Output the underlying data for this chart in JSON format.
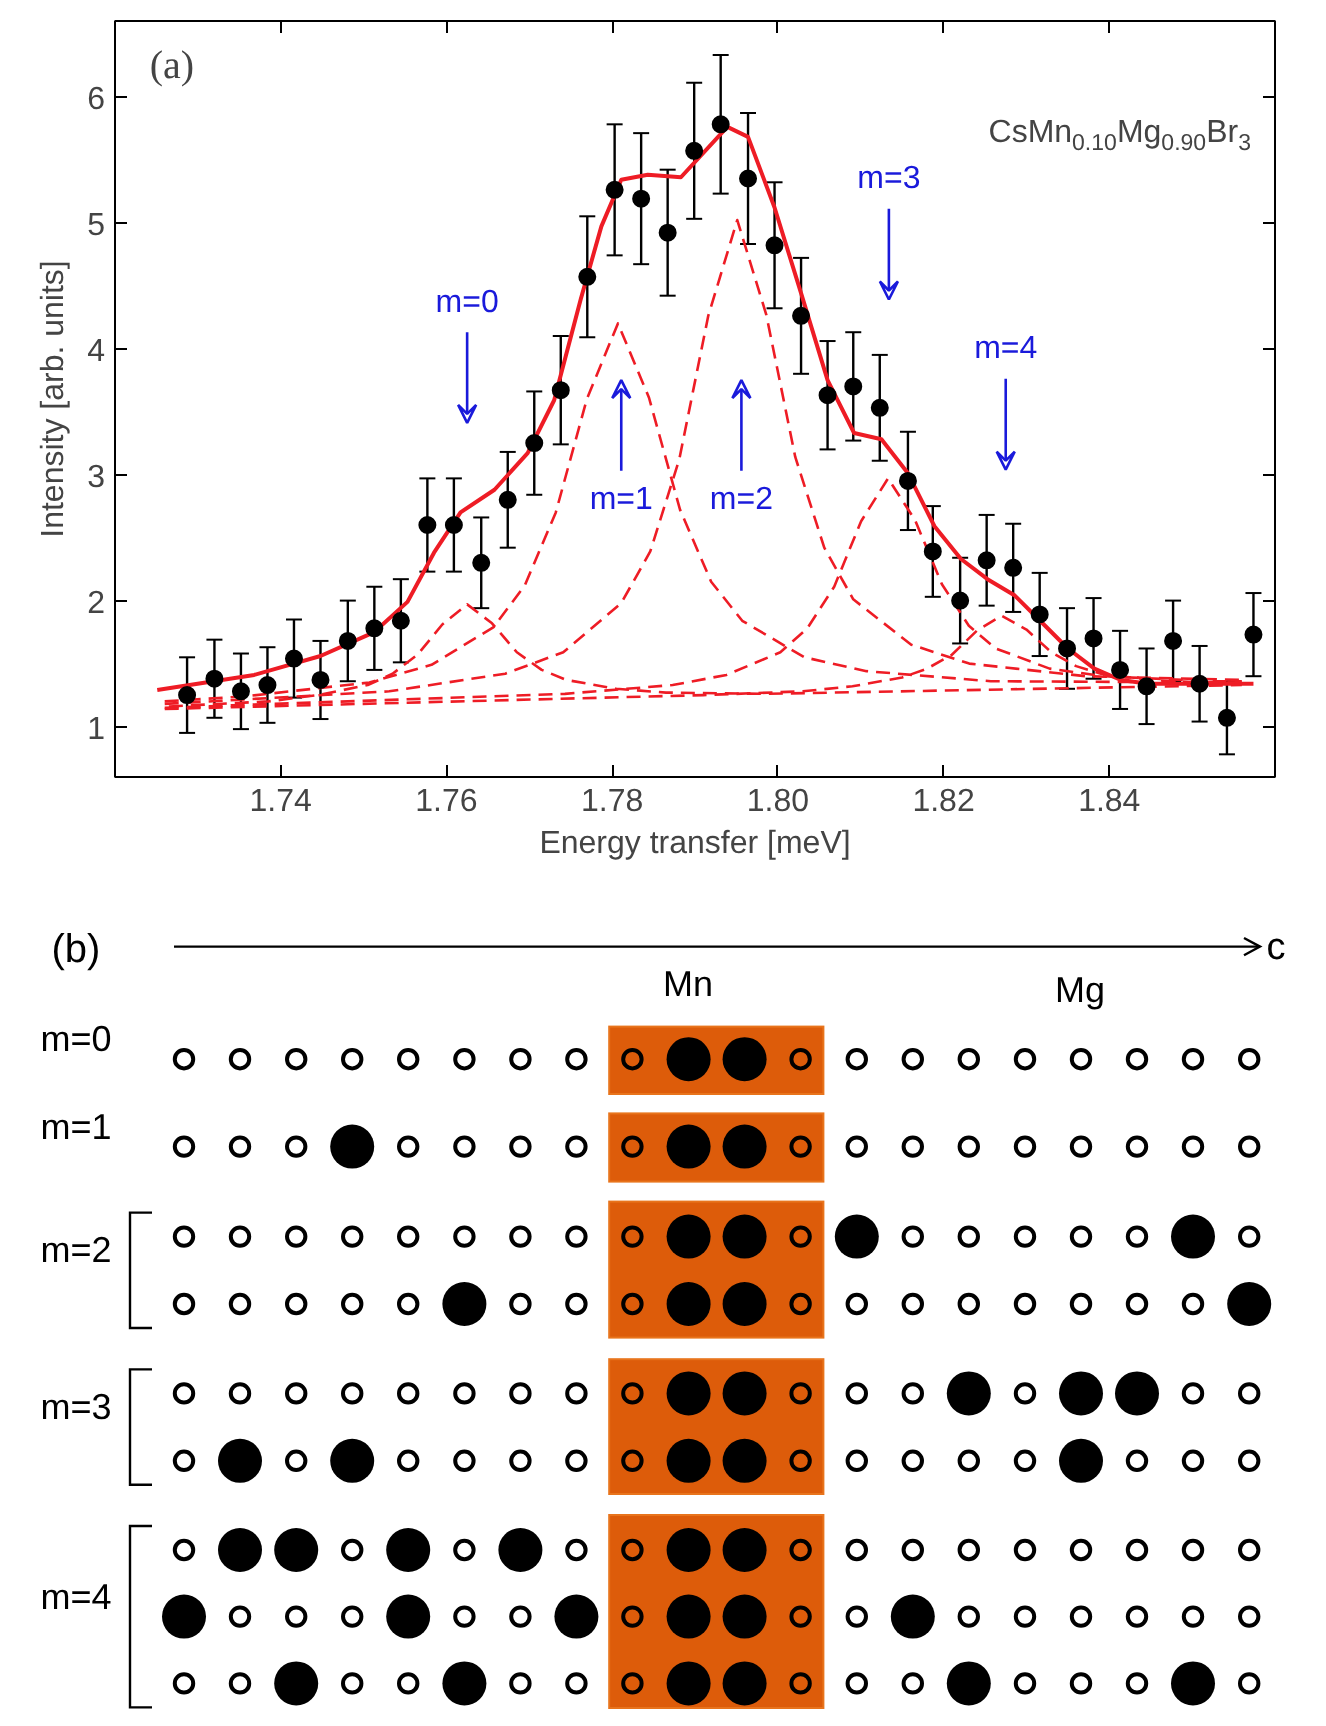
{
  "chart_data": [
    {
      "type": "scatter",
      "xlabel": "Energy transfer [meV]",
      "ylabel": "Intensity [arb. units]",
      "xlim": [
        1.72,
        1.86
      ],
      "ylim": [
        0.6,
        6.6
      ],
      "xticks": [
        1.74,
        1.76,
        1.78,
        {
          "value": 1.8,
          "label": "1.80"
        },
        1.82,
        1.84
      ],
      "yticks": [
        1,
        2,
        3,
        4,
        5,
        6
      ],
      "grid": false,
      "annotations": [
        "(a)",
        "CsMn$_{0.10}$Mg$_{0.90}$Br$_{3}$",
        "m=0",
        "m=1",
        "m=2",
        "m=3",
        "m=4"
      ],
      "series": [
        {
          "type": "line",
          "color": "#ee1c25",
          "line_style": "solid",
          "x": [
            1.7251,
            1.7368,
            1.7448,
            1.7513,
            1.7553,
            1.7585,
            1.7617,
            1.7658,
            1.7698,
            1.773,
            1.7762,
            1.7787,
            1.7811,
            1.7843,
            1.7883,
            1.7939,
            1.7964,
            1.7996,
            1.8028,
            1.806,
            1.8092,
            1.8125,
            1.8157,
            1.8189,
            1.8221,
            1.8253,
            1.8286,
            1.8318,
            1.835,
            1.8382,
            1.8414,
            1.8447,
            1.8574
          ],
          "values": [
            1.29,
            1.41,
            1.56,
            1.75,
            1.99,
            2.38,
            2.7,
            2.88,
            3.17,
            3.59,
            4.39,
            4.97,
            5.34,
            5.38,
            5.36,
            5.76,
            5.68,
            5.12,
            4.44,
            3.75,
            3.33,
            3.28,
            3.01,
            2.59,
            2.33,
            2.17,
            2.04,
            1.83,
            1.62,
            1.46,
            1.37,
            1.34,
            1.34
          ]
        },
        {
          "type": "line",
          "color": "#ee1c25",
          "line_style": "dashed",
          "x": [
            1.7265,
            1.7385,
            1.7445,
            1.7505,
            1.7535,
            1.7565,
            1.7595,
            1.7625,
            1.7655,
            1.7685,
            1.7715,
            1.7745,
            1.7805,
            1.7865,
            1.7985,
            1.856
          ],
          "values": [
            1.16,
            1.2,
            1.25,
            1.33,
            1.42,
            1.57,
            1.81,
            1.97,
            1.82,
            1.59,
            1.45,
            1.37,
            1.3,
            1.27,
            1.26,
            1.33
          ]
        },
        {
          "type": "line",
          "color": "#ee1c25",
          "line_style": "dashed",
          "x": [
            1.726,
            1.7357,
            1.7507,
            1.7582,
            1.7657,
            1.76945,
            1.7732,
            1.77695,
            1.7807,
            1.78445,
            1.7882,
            1.79195,
            1.7957,
            1.8032,
            1.8107,
            1.8257,
            1.856
          ],
          "values": [
            1.2,
            1.24,
            1.35,
            1.49,
            1.79,
            2.12,
            2.7,
            3.6,
            4.2,
            3.61,
            2.72,
            2.15,
            1.84,
            1.55,
            1.44,
            1.36,
            1.35
          ]
        },
        {
          "type": "line",
          "color": "#ee1c25",
          "line_style": "dashed",
          "x": [
            1.726,
            1.7531,
            1.7671,
            1.7741,
            1.7811,
            1.7846,
            1.7881,
            1.7916,
            1.7951,
            1.7986,
            1.8021,
            1.8056,
            1.8091,
            1.8161,
            1.8231,
            1.8371,
            1.856
          ],
          "values": [
            1.18,
            1.28,
            1.42,
            1.59,
            1.98,
            2.39,
            3.12,
            4.26,
            5.02,
            4.27,
            3.14,
            2.42,
            2.01,
            1.65,
            1.5,
            1.4,
            1.37
          ]
        },
        {
          "type": "line",
          "color": "#ee1c25",
          "line_style": "dashed",
          "x": [
            1.726,
            1.7743,
            1.7873,
            1.7938,
            1.8003,
            1.80355,
            1.8068,
            1.81005,
            1.8133,
            1.81655,
            1.8198,
            1.82305,
            1.8263,
            1.8328,
            1.8393,
            1.8523,
            1.856
          ],
          "values": [
            1.15,
            1.26,
            1.33,
            1.41,
            1.59,
            1.78,
            2.11,
            2.63,
            2.97,
            2.64,
            2.13,
            1.8,
            1.62,
            1.46,
            1.4,
            1.36,
            1.36
          ]
        },
        {
          "type": "line",
          "color": "#ee1c25",
          "line_style": "dashed",
          "x": [
            1.726,
            1.791,
            1.803,
            1.809,
            1.815,
            1.818,
            1.821,
            1.824,
            1.827,
            1.83,
            1.833,
            1.836,
            1.839,
            1.845,
            1.851,
            1.856
          ],
          "values": [
            1.14,
            1.25,
            1.28,
            1.32,
            1.39,
            1.46,
            1.57,
            1.76,
            1.88,
            1.77,
            1.59,
            1.48,
            1.42,
            1.37,
            1.35,
            1.35
          ]
        },
        {
          "type": "scatter",
          "color": "#000000",
          "marker": "circle",
          "x": [
            1.7287,
            1.732,
            1.7352,
            1.7384,
            1.7416,
            1.7448,
            1.7481,
            1.7513,
            1.7545,
            1.7577,
            1.7609,
            1.7642,
            1.7674,
            1.7706,
            1.7738,
            1.777,
            1.7803,
            1.7835,
            1.7867,
            1.7899,
            1.7931,
            1.7964,
            1.7996,
            1.8028,
            1.806,
            1.8091,
            1.8123,
            1.8157,
            1.8187,
            1.822,
            1.8252,
            1.8284,
            1.8316,
            1.8349,
            1.8381,
            1.8413,
            1.8445,
            1.8477,
            1.8509,
            1.8542,
            1.8574
          ],
          "values": [
            1.25,
            1.38,
            1.28,
            1.33,
            1.54,
            1.37,
            1.68,
            1.78,
            1.84,
            2.6,
            2.6,
            2.3,
            2.8,
            3.25,
            3.67,
            4.57,
            5.26,
            5.19,
            4.92,
            5.57,
            5.78,
            5.35,
            4.82,
            4.26,
            3.63,
            3.7,
            3.53,
            2.95,
            2.39,
            2.0,
            2.32,
            2.26,
            1.89,
            1.62,
            1.7,
            1.45,
            1.32,
            1.68,
            1.34,
            1.07,
            1.73
          ],
          "errors": [
            0.3,
            0.31,
            0.3,
            0.3,
            0.31,
            0.31,
            0.32,
            0.33,
            0.33,
            0.37,
            0.37,
            0.36,
            0.38,
            0.41,
            0.43,
            0.48,
            0.52,
            0.52,
            0.5,
            0.54,
            0.55,
            0.52,
            0.5,
            0.46,
            0.43,
            0.43,
            0.42,
            0.39,
            0.36,
            0.34,
            0.36,
            0.35,
            0.33,
            0.32,
            0.32,
            0.31,
            0.3,
            0.32,
            0.3,
            0.29,
            0.33
          ]
        }
      ]
    },
    {
      "type": "other",
      "annotations": [
        "(b)",
        "c",
        "Mn",
        "Mg",
        "m=0",
        "m=1",
        "m=2",
        "m=3",
        "m=4"
      ]
    }
  ]
}
